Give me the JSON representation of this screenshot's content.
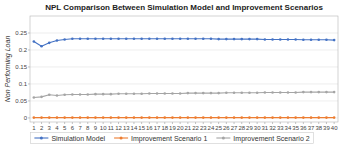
{
  "chart_data": {
    "type": "line",
    "title": "NPL Comparison Between Simulation Model and Improvement Scenarios",
    "y_label": "Non Performing Loan",
    "x": [
      1,
      2,
      3,
      4,
      5,
      6,
      7,
      8,
      9,
      10,
      11,
      12,
      13,
      14,
      15,
      16,
      17,
      18,
      19,
      20,
      21,
      22,
      23,
      24,
      25,
      26,
      27,
      28,
      29,
      30,
      31,
      32,
      33,
      34,
      35,
      36,
      37,
      38,
      39,
      40
    ],
    "xlim": [
      0.5,
      40.5
    ],
    "xticks": [
      1,
      2,
      3,
      4,
      5,
      6,
      7,
      8,
      9,
      10,
      11,
      12,
      13,
      14,
      15,
      16,
      17,
      18,
      19,
      20,
      21,
      22,
      23,
      24,
      25,
      26,
      27,
      28,
      29,
      30,
      31,
      32,
      33,
      34,
      35,
      36,
      37,
      38,
      39,
      40
    ],
    "ylim": [
      -0.012,
      0.3
    ],
    "yticks": [
      0,
      0.05,
      0.1,
      0.15,
      0.2,
      0.25
    ],
    "grid": true,
    "legend": "bottom",
    "marker": "circle",
    "series": [
      {
        "name": "Simulation Model",
        "color": "#4472C4",
        "values": [
          0.225,
          0.211,
          0.221,
          0.228,
          0.231,
          0.233,
          0.233,
          0.233,
          0.233,
          0.233,
          0.233,
          0.233,
          0.233,
          0.233,
          0.233,
          0.233,
          0.233,
          0.233,
          0.233,
          0.233,
          0.233,
          0.233,
          0.233,
          0.233,
          0.232,
          0.232,
          0.232,
          0.232,
          0.232,
          0.232,
          0.231,
          0.231,
          0.231,
          0.231,
          0.231,
          0.23,
          0.23,
          0.23,
          0.23,
          0.229
        ]
      },
      {
        "name": "Improvement Scenario 1",
        "color": "#ED7D31",
        "values": [
          0.001,
          0.001,
          0.001,
          0.001,
          0.001,
          0.001,
          0.001,
          0.001,
          0.001,
          0.001,
          0.001,
          0.001,
          0.001,
          0.001,
          0.001,
          0.001,
          0.001,
          0.001,
          0.001,
          0.001,
          0.001,
          0.001,
          0.001,
          0.001,
          0.001,
          0.001,
          0.001,
          0.001,
          0.001,
          0.001,
          0.001,
          0.001,
          0.001,
          0.001,
          0.001,
          0.001,
          0.001,
          0.001,
          0.001,
          0.001
        ]
      },
      {
        "name": "Improvement Scenario 2",
        "color": "#A5A5A5",
        "values": [
          0.06,
          0.062,
          0.068,
          0.066,
          0.068,
          0.069,
          0.069,
          0.069,
          0.07,
          0.07,
          0.07,
          0.071,
          0.071,
          0.071,
          0.071,
          0.072,
          0.072,
          0.072,
          0.072,
          0.072,
          0.073,
          0.073,
          0.073,
          0.073,
          0.073,
          0.074,
          0.074,
          0.074,
          0.074,
          0.074,
          0.075,
          0.075,
          0.075,
          0.075,
          0.075,
          0.076,
          0.076,
          0.076,
          0.076,
          0.076
        ]
      }
    ]
  }
}
